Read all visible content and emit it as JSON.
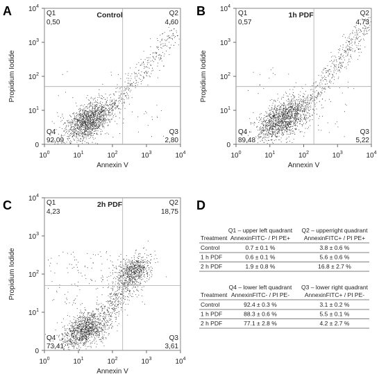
{
  "panels": [
    {
      "letter": "A",
      "title": "Control",
      "quadrants": {
        "q1": {
          "label": "Q1",
          "value": "0,50"
        },
        "q2": {
          "label": "Q2",
          "value": "4,60"
        },
        "q3": {
          "label": "Q3",
          "value": "2,80"
        },
        "q4": {
          "label": "Q4",
          "value": "92,09"
        }
      }
    },
    {
      "letter": "B",
      "title": "1h PDF",
      "quadrants": {
        "q1": {
          "label": "Q1",
          "value": "0,57"
        },
        "q2": {
          "label": "Q2",
          "value": "4,73"
        },
        "q3": {
          "label": "Q3",
          "value": "5,22"
        },
        "q4": {
          "label": "Q4",
          "value": "89,48"
        }
      }
    },
    {
      "letter": "C",
      "title": "2h PDF",
      "quadrants": {
        "q1": {
          "label": "Q1",
          "value": "4,23"
        },
        "q2": {
          "label": "Q2",
          "value": "18,75"
        },
        "q3": {
          "label": "Q3",
          "value": "3,61"
        },
        "q4": {
          "label": "Q4",
          "value": "73,41"
        }
      }
    }
  ],
  "axes": {
    "x_label": "Annexin V",
    "y_label": "Propidium Iodide",
    "xticks": [
      {
        "value": 0,
        "label": "10",
        "exp": "0"
      },
      {
        "value": 1,
        "label": "10",
        "exp": "1"
      },
      {
        "value": 2,
        "label": "10",
        "exp": "2"
      },
      {
        "value": 3,
        "label": "10",
        "exp": "3"
      },
      {
        "value": 4,
        "label": "10",
        "exp": "4"
      }
    ],
    "yticks": [
      {
        "value": 0,
        "label": "0"
      },
      {
        "value": 1,
        "label": "10",
        "exp": "1"
      },
      {
        "value": 2,
        "label": "10",
        "exp": "2"
      },
      {
        "value": 3,
        "label": "10",
        "exp": "3"
      },
      {
        "value": 4,
        "label": "10",
        "exp": "4"
      }
    ]
  },
  "panel_d": {
    "letter": "D",
    "tables": [
      {
        "columns": [
          [
            "Treatment"
          ],
          [
            "Q1 – upper left quadrant",
            "AnnexinFITC- / PI PE+"
          ],
          [
            "Q2 – upperright quadrant",
            "AnnexinFITC+ / PI PE+"
          ]
        ],
        "rows": [
          [
            "Control",
            "0.7 ± 0.1 %",
            "3.8 ± 0.6 %"
          ],
          [
            "1 h PDF",
            "0.6 ± 0.1 %",
            "5.6 ± 0.6 %"
          ],
          [
            "2 h PDF",
            "1.9 ± 0.8 %",
            "16.8 ± 2.7 %"
          ]
        ]
      },
      {
        "columns": [
          [
            "Treatment"
          ],
          [
            "Q4 – lower left quadrant",
            "AnnexinFITC- / PI PE-"
          ],
          [
            "Q3 – lower right quadrant",
            "AnnexinFITC+ / PI PE-"
          ]
        ],
        "rows": [
          [
            "Control",
            "92.4 ± 0.3 %",
            "3.1 ± 0.2 %"
          ],
          [
            "1 h PDF",
            "88.3 ± 0.6 %",
            "5.5 ± 0.1 %"
          ],
          [
            "2 h PDF",
            "77.1 ± 2.8 %",
            "4.2 ± 2.7 %"
          ]
        ]
      }
    ]
  }
}
